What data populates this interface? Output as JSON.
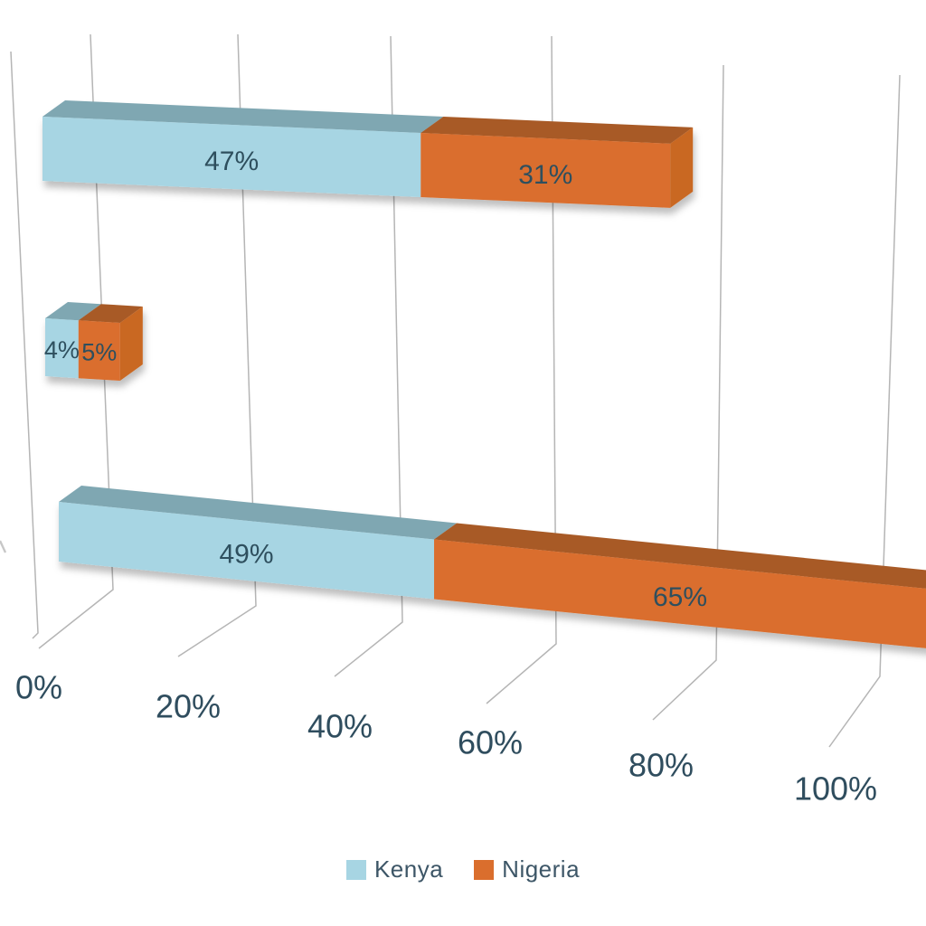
{
  "chart_data": {
    "type": "bar",
    "variant": "3d-horizontal-stacked",
    "orientation": "horizontal",
    "title": "",
    "categories": [
      "",
      "",
      ""
    ],
    "series": [
      {
        "name": "Kenya",
        "color": "#A7D5E3",
        "top_color": "#7FA7B2",
        "side_color": "#8FC2D0",
        "values": [
          47,
          4,
          49
        ],
        "labels": [
          "47%",
          "4%",
          "49%"
        ]
      },
      {
        "name": "Nigeria",
        "color": "#DA6E2D",
        "top_color": "#A85A26",
        "side_color": "#C96722",
        "values": [
          31,
          5,
          65
        ],
        "labels": [
          "31%",
          "5%",
          "65%"
        ]
      }
    ],
    "x_ticks": [
      "0%",
      "20%",
      "40%",
      "60%",
      "80%",
      "100%"
    ],
    "xlim": [
      0,
      100
    ],
    "grid": true,
    "legend_position": "bottom",
    "data_label_color": "#2E4F5E",
    "tick_label_color": "#2F4D5E",
    "gridline_color": "#B5B5B5",
    "background": "#FFFFFF"
  }
}
